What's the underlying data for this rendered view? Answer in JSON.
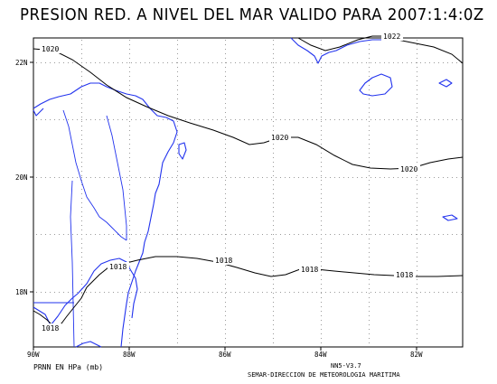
{
  "title": "PRESION RED. A NIVEL DEL MAR VALIDO PARA 2007:1:4:0Z",
  "axes": {
    "longitude_labels": [
      "90W",
      "88W",
      "86W",
      "84W",
      "82W"
    ],
    "latitude_labels": [
      "22N",
      "20N",
      "18N"
    ]
  },
  "isobar_labels": [
    "1020",
    "1022",
    "1020",
    "1020",
    "1018",
    "1018",
    "1018",
    "1018",
    "1018"
  ],
  "colors": {
    "coastline": "#2233ee",
    "isobar": "#000000",
    "grid": "#9a9a9a"
  },
  "footer": {
    "left": "PRNN EN HPa (mb)",
    "model": "NN5-V3.7",
    "credit": "SEMAR-DIRECCION DE METEOROLOGIA MARITIMA"
  }
}
